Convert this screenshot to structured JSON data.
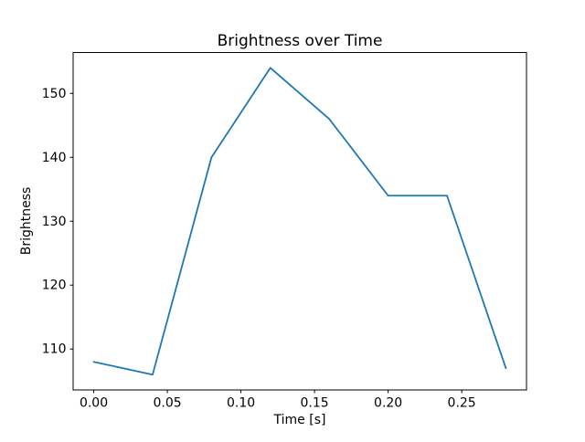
{
  "figure": {
    "background_color": "#ffffff",
    "text_color": "#000000"
  },
  "chart_data": {
    "type": "line",
    "title": "Brightness over Time",
    "xlabel": "Time [s]",
    "ylabel": "Brightness",
    "x": [
      0.0,
      0.04,
      0.08,
      0.12,
      0.16,
      0.2,
      0.24,
      0.28
    ],
    "y": [
      108,
      106,
      140,
      154,
      146,
      134,
      134,
      107
    ],
    "series_name": "Brightness",
    "xticks": {
      "values": [
        0.0,
        0.05,
        0.1,
        0.15,
        0.2,
        0.25
      ],
      "labels": [
        "0.00",
        "0.05",
        "0.10",
        "0.15",
        "0.20",
        "0.25"
      ]
    },
    "yticks": {
      "values": [
        110,
        120,
        130,
        140,
        150
      ],
      "labels": [
        "110",
        "120",
        "130",
        "140",
        "150"
      ]
    },
    "xlim": [
      -0.014,
      0.294
    ],
    "ylim": [
      103.6,
      156.4
    ],
    "line_color": "#1f77b4",
    "axis_color": "#000000",
    "grid": false,
    "legend": null
  }
}
